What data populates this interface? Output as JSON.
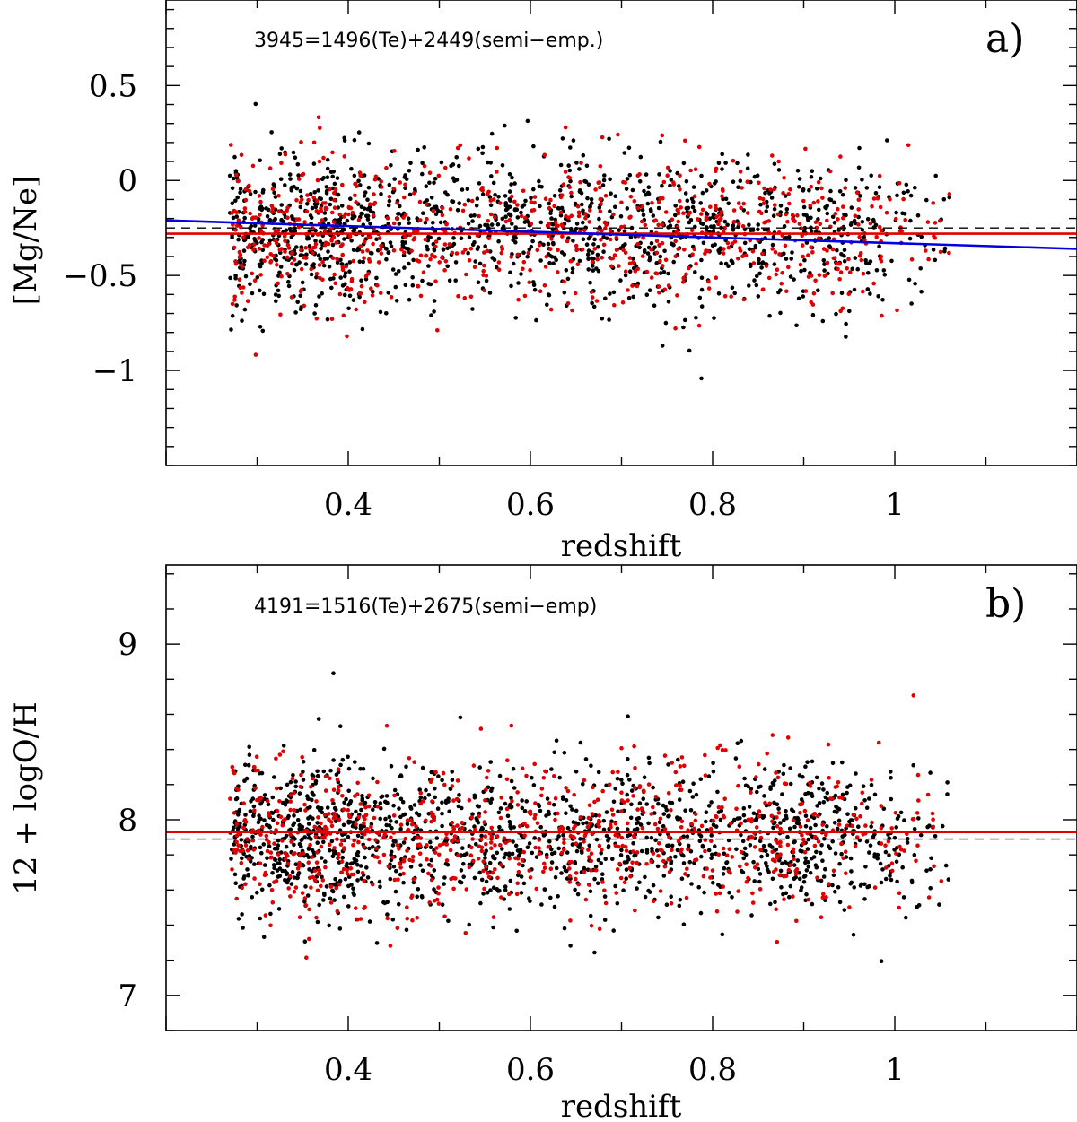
{
  "chart_data": [
    {
      "type": "scatter",
      "panel_label": "a)",
      "annotation": "3945=1496(Te)+2449(semi−emp.)",
      "xlabel": "redshift",
      "ylabel": "[Mg/Ne]",
      "xlim": [
        0.2,
        1.2
      ],
      "ylim": [
        -1.5,
        0.95
      ],
      "x_ticks": [
        0.4,
        0.6,
        0.8,
        1.0
      ],
      "x_tick_labels": [
        "0.4",
        "0.6",
        "0.8",
        "1"
      ],
      "y_ticks": [
        0.5,
        0,
        -0.5,
        -1
      ],
      "y_tick_labels": [
        "0.5",
        "0",
        "−0.5",
        "−1"
      ],
      "series": [
        {
          "name": "semi-empirical",
          "color": "#000000",
          "count": 2449
        },
        {
          "name": "Te",
          "color": "#e00000",
          "count": 1496
        }
      ],
      "point_distribution": {
        "x_range": [
          0.27,
          1.06
        ],
        "y_center": -0.27,
        "y_spread": 0.2
      },
      "lines": [
        {
          "name": "mean",
          "style": "solid",
          "color": "#e00000",
          "y": -0.28
        },
        {
          "name": "solar",
          "style": "dashed",
          "color": "#000000",
          "y": -0.25
        },
        {
          "name": "linear fit",
          "style": "solid",
          "color": "#0000e0",
          "x": [
            0.2,
            1.2
          ],
          "y": [
            -0.21,
            -0.36
          ]
        }
      ]
    },
    {
      "type": "scatter",
      "panel_label": "b)",
      "annotation": "4191=1516(Te)+2675(semi−emp)",
      "xlabel": "redshift",
      "ylabel": "12 + logO/H",
      "xlim": [
        0.2,
        1.2
      ],
      "ylim": [
        6.8,
        9.45
      ],
      "x_ticks": [
        0.4,
        0.6,
        0.8,
        1.0
      ],
      "x_tick_labels": [
        "0.4",
        "0.6",
        "0.8",
        "1"
      ],
      "y_ticks": [
        9,
        8,
        7
      ],
      "y_tick_labels": [
        "9",
        "8",
        "7"
      ],
      "series": [
        {
          "name": "semi-empirical",
          "color": "#000000",
          "count": 2675
        },
        {
          "name": "Te",
          "color": "#e00000",
          "count": 1516
        }
      ],
      "point_distribution": {
        "x_range": [
          0.27,
          1.06
        ],
        "y_center": 7.9,
        "y_spread": 0.22
      },
      "lines": [
        {
          "name": "mean",
          "style": "solid",
          "color": "#e00000",
          "y": 7.93
        },
        {
          "name": "solar",
          "style": "dashed",
          "color": "#000000",
          "y": 7.89
        }
      ]
    }
  ]
}
